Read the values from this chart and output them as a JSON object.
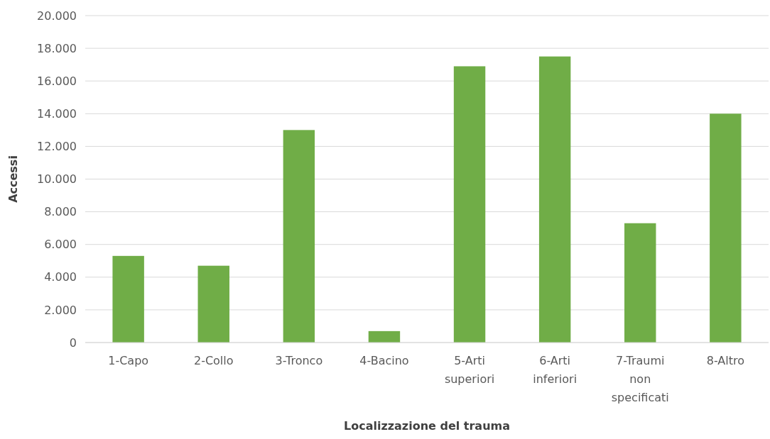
{
  "chart_data": {
    "type": "bar",
    "xlabel": "Localizzazione del trauma",
    "ylabel": "Accessi",
    "categories": [
      "1-Capo",
      "2-Collo",
      "3-Tronco",
      "4-Bacino",
      "5-Arti superiori",
      "6-Arti inferiori",
      "7-Traumi non specificati",
      "8-Altro"
    ],
    "values": [
      5300,
      4700,
      13000,
      700,
      16900,
      17500,
      7300,
      14000
    ],
    "color": "#70ad47",
    "ylim": [
      0,
      20000
    ],
    "yticks": [
      0,
      {
        "value": 2000,
        "label": "2.000"
      },
      {
        "value": 4000,
        "label": "4.000"
      },
      {
        "value": 6000,
        "label": "6.000"
      },
      {
        "value": 8000,
        "label": "8.000"
      },
      {
        "value": 10000,
        "label": "10.000"
      },
      {
        "value": 12000,
        "label": "12.000"
      },
      {
        "value": 14000,
        "label": "14.000"
      },
      {
        "value": 16000,
        "label": "16.000"
      },
      {
        "value": 18000,
        "label": "18.000"
      },
      {
        "value": 20000,
        "label": "20.000"
      }
    ],
    "grid": "y"
  }
}
